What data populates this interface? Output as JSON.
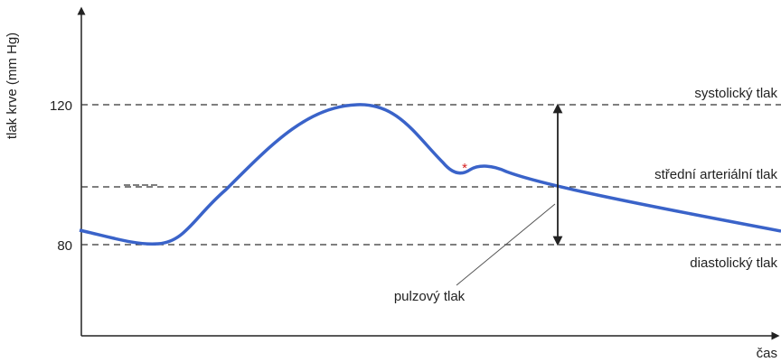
{
  "axes": {
    "y_label": "tlak krve (mm Hg)",
    "y_ticks": [
      "120",
      "80"
    ],
    "x_label": "čas"
  },
  "levels": {
    "systolic": "systolický tlak",
    "mean": "střední arteriální tlak",
    "diastolic": "diastolický tlak"
  },
  "annotations": {
    "pulse_pressure": "pulzový tlak",
    "marker": "*"
  }
}
